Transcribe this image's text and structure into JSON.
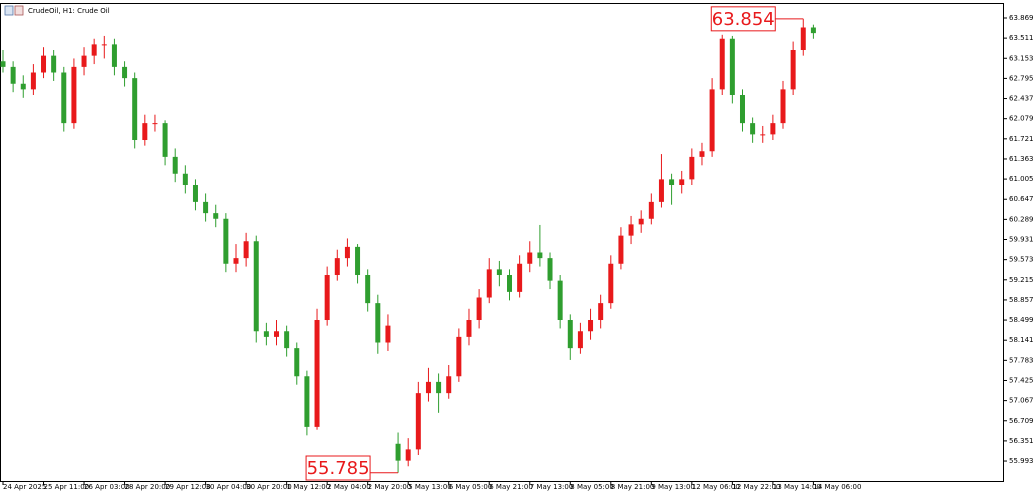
{
  "chart_data": {
    "type": "candlestick",
    "title": "CrudeOil, H1:  Crude Oil",
    "up_color": "#e8191b",
    "down_color": "#2f9e2f",
    "categories": [
      "24 Apr 2025",
      null,
      null,
      null,
      "25 Apr 11:00",
      null,
      null,
      null,
      "26 Apr 03:00",
      null,
      null,
      null,
      "28 Apr 20:00",
      null,
      null,
      null,
      "29 Apr 12:00",
      null,
      null,
      null,
      "30 Apr 04:00",
      null,
      null,
      null,
      "30 Apr 20:00",
      null,
      null,
      null,
      "1 May 12:00",
      null,
      null,
      null,
      "2 May 04:00",
      null,
      null,
      null,
      "2 May 20:00",
      null,
      null,
      null,
      "5 May 13:00",
      null,
      null,
      null,
      "6 May 05:00",
      null,
      null,
      null,
      "6 May 21:00",
      null,
      null,
      null,
      "7 May 13:00",
      null,
      null,
      null,
      "8 May 05:00",
      null,
      null,
      null,
      "8 May 21:00",
      null,
      null,
      null,
      "9 May 13:00",
      null,
      null,
      null,
      "12 May 06:00",
      null,
      null,
      null,
      "12 May 22:00",
      null,
      null,
      null,
      "13 May 14:00",
      null,
      null,
      null,
      "14 May 06:00"
    ],
    "open": [
      63.1,
      63.0,
      62.7,
      62.6,
      62.9,
      63.2,
      62.9,
      62.0,
      63.0,
      63.2,
      63.4,
      63.4,
      63.0,
      62.8,
      61.7,
      62.0,
      62.0,
      61.4,
      61.1,
      60.9,
      60.6,
      60.4,
      60.3,
      59.5,
      59.6,
      59.9,
      58.3,
      58.2,
      58.3,
      58.0,
      57.5,
      56.6,
      58.5,
      59.3,
      59.6,
      59.8,
      59.3,
      58.8,
      58.1,
      56.3,
      56.0,
      56.2,
      57.2,
      57.4,
      57.2,
      57.5,
      58.2,
      58.5,
      58.9,
      59.4,
      59.3,
      59.0,
      59.5,
      59.7,
      59.6,
      59.2,
      58.5,
      58.0,
      58.3,
      58.5,
      58.8,
      59.5,
      60.0,
      60.2,
      60.3,
      60.6,
      61.0,
      60.9,
      61.0,
      61.4,
      61.5,
      62.6,
      63.5,
      62.5,
      62.0,
      61.8,
      61.8,
      62.0,
      62.6,
      63.3,
      63.7
    ],
    "high": [
      63.3,
      63.1,
      62.85,
      63.05,
      63.35,
      63.3,
      63.0,
      63.15,
      63.35,
      63.5,
      63.55,
      63.5,
      63.1,
      62.9,
      62.15,
      62.15,
      62.05,
      61.55,
      61.25,
      61.0,
      60.75,
      60.55,
      60.4,
      59.85,
      60.05,
      60.0,
      58.45,
      58.5,
      58.4,
      58.1,
      57.6,
      58.7,
      59.45,
      59.75,
      59.95,
      59.85,
      59.4,
      58.95,
      58.6,
      56.5,
      56.4,
      57.4,
      57.65,
      57.55,
      57.7,
      58.35,
      58.7,
      59.05,
      59.6,
      59.55,
      59.4,
      59.65,
      59.9,
      60.19,
      59.7,
      59.3,
      58.6,
      58.45,
      58.7,
      58.95,
      59.65,
      60.15,
      60.35,
      60.45,
      60.75,
      61.45,
      61.1,
      61.15,
      61.55,
      61.65,
      62.8,
      63.57,
      63.55,
      62.6,
      62.1,
      61.95,
      62.15,
      62.75,
      63.45,
      63.854,
      63.75
    ],
    "low": [
      62.9,
      62.55,
      62.45,
      62.5,
      62.8,
      62.75,
      61.85,
      61.9,
      62.85,
      63.05,
      63.15,
      62.85,
      62.65,
      61.55,
      61.6,
      61.85,
      61.25,
      60.95,
      60.75,
      60.45,
      60.25,
      60.15,
      59.35,
      59.35,
      59.45,
      58.1,
      58.05,
      58.05,
      57.85,
      57.35,
      56.45,
      56.55,
      58.4,
      59.2,
      59.45,
      59.15,
      58.65,
      57.9,
      57.95,
      55.785,
      55.9,
      56.1,
      57.05,
      56.85,
      57.1,
      57.4,
      58.05,
      58.35,
      58.8,
      59.1,
      58.85,
      58.9,
      59.35,
      59.45,
      59.05,
      58.35,
      57.79,
      57.9,
      58.15,
      58.35,
      58.7,
      59.4,
      59.85,
      60.05,
      60.2,
      60.5,
      60.55,
      60.75,
      60.9,
      61.25,
      61.4,
      62.5,
      62.35,
      61.85,
      61.65,
      61.65,
      61.7,
      61.9,
      62.5,
      63.2,
      63.5
    ],
    "close": [
      63.0,
      62.7,
      62.6,
      62.9,
      63.2,
      62.9,
      62.0,
      63.0,
      63.2,
      63.4,
      63.4,
      63.0,
      62.8,
      61.7,
      62.0,
      62.0,
      61.4,
      61.1,
      60.9,
      60.6,
      60.4,
      60.3,
      59.5,
      59.6,
      59.9,
      58.3,
      58.2,
      58.3,
      58.0,
      57.5,
      56.6,
      58.5,
      59.3,
      59.6,
      59.8,
      59.3,
      58.8,
      58.1,
      58.4,
      56.0,
      56.2,
      57.2,
      57.4,
      57.2,
      57.5,
      58.2,
      58.5,
      58.9,
      59.4,
      59.3,
      59.0,
      59.5,
      59.7,
      59.6,
      59.2,
      58.5,
      58.0,
      58.3,
      58.5,
      58.8,
      59.5,
      60.0,
      60.2,
      60.3,
      60.6,
      61.0,
      60.9,
      61.0,
      61.4,
      61.5,
      62.6,
      63.5,
      62.5,
      62.0,
      61.8,
      61.8,
      62.0,
      62.6,
      63.3,
      63.7,
      63.6
    ],
    "ylim": [
      55.638,
      64.1
    ],
    "yticks": [
      63.869,
      63.511,
      63.153,
      62.795,
      62.437,
      62.079,
      61.721,
      61.363,
      61.005,
      60.647,
      60.289,
      59.931,
      59.573,
      59.215,
      58.857,
      58.499,
      58.141,
      57.783,
      57.425,
      57.067,
      56.709,
      56.351,
      55.993
    ],
    "annotations": [
      {
        "label": "63.854",
        "value": 63.854,
        "at": "high"
      },
      {
        "label": "55.785",
        "value": 55.785,
        "at": "low"
      }
    ]
  }
}
